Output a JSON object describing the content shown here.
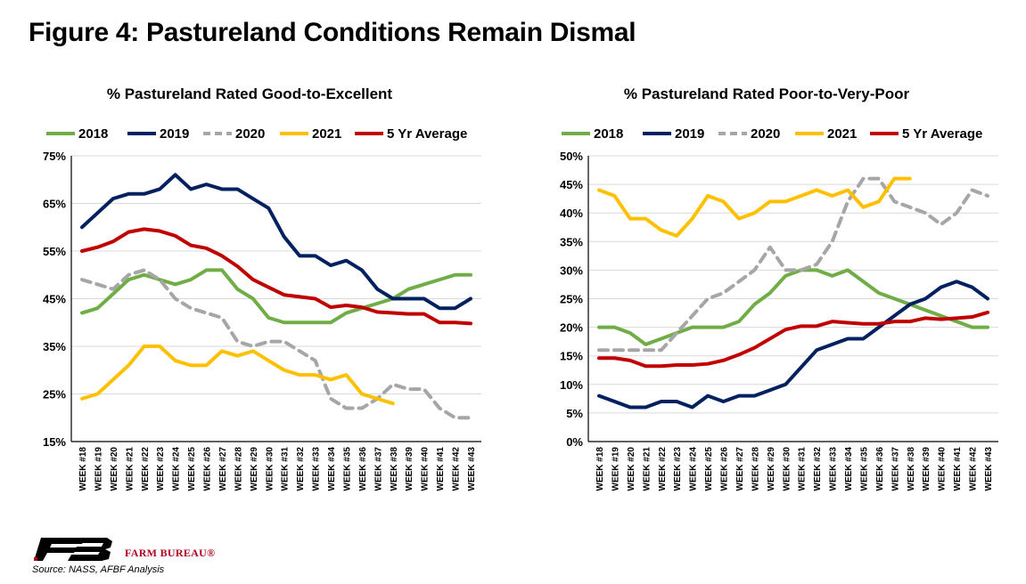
{
  "figure_title": "Figure 4: Pastureland Conditions Remain Dismal",
  "source": "Source: NASS, AFBF Analysis",
  "brand": "FARM BUREAU®",
  "colors": {
    "2018": "#70ad47",
    "2019": "#002060",
    "2020": "#a6a6a6",
    "2021": "#ffc000",
    "5 Yr Average": "#c00000"
  },
  "chart_data": [
    {
      "type": "line",
      "title": "% Pastureland Rated Good-to-Excellent",
      "categories": [
        "WEEK #18",
        "WEEK #19",
        "WEEK #20",
        "WEEK #21",
        "WEEK #22",
        "WEEK #23",
        "WEEK #24",
        "WEEK #25",
        "WEEK #26",
        "WEEK #27",
        "WEEK #28",
        "WEEK #29",
        "WEEK #30",
        "WEEK #31",
        "WEEK #32",
        "WEEK #33",
        "WEEK #34",
        "WEEK #35",
        "WEEK #36",
        "WEEK #37",
        "WEEK #38",
        "WEEK #39",
        "WEEK #40",
        "WEEK #41",
        "WEEK #42",
        "WEEK #43"
      ],
      "ylim": [
        15,
        75
      ],
      "yticks": [
        15,
        25,
        35,
        45,
        55,
        65,
        75
      ],
      "ytick_labels": [
        "15%",
        "25%",
        "35%",
        "45%",
        "55%",
        "65%",
        "75%"
      ],
      "legend_position": "top",
      "series": [
        {
          "name": "2018",
          "style": "solid",
          "values": [
            42,
            43,
            46,
            49,
            50,
            49,
            48,
            49,
            51,
            51,
            47,
            45,
            41,
            40,
            40,
            40,
            40,
            42,
            43,
            44,
            45,
            47,
            48,
            49,
            50,
            50
          ]
        },
        {
          "name": "2019",
          "style": "solid",
          "values": [
            60,
            63,
            66,
            67,
            67,
            68,
            71,
            68,
            69,
            68,
            68,
            66,
            64,
            58,
            54,
            54,
            52,
            53,
            51,
            47,
            45,
            45,
            45,
            43,
            43,
            45
          ]
        },
        {
          "name": "2020",
          "style": "dashed",
          "values": [
            49,
            48,
            47,
            50,
            51,
            49,
            45,
            43,
            42,
            41,
            36,
            35,
            36,
            36,
            34,
            32,
            24,
            22,
            22,
            24,
            27,
            26,
            26,
            22,
            20,
            20
          ]
        },
        {
          "name": "2021",
          "style": "solid",
          "values": [
            24,
            25,
            28,
            31,
            35,
            35,
            32,
            31,
            31,
            34,
            33,
            34,
            32,
            30,
            29,
            29,
            28,
            29,
            25,
            24,
            23,
            null,
            null,
            null,
            null,
            null
          ]
        },
        {
          "name": "5 Yr Average",
          "style": "solid",
          "values": [
            55,
            55.8,
            57,
            59,
            59.6,
            59.2,
            58.2,
            56.2,
            55.6,
            54,
            51.8,
            49,
            47.4,
            45.8,
            45.4,
            45,
            43.2,
            43.6,
            43.2,
            42.2,
            42,
            41.8,
            41.8,
            40,
            40,
            39.8
          ]
        }
      ]
    },
    {
      "type": "line",
      "title": "% Pastureland Rated Poor-to-Very-Poor",
      "categories": [
        "WEEK #18",
        "WEEK #19",
        "WEEK #20",
        "WEEK #21",
        "WEEK #22",
        "WEEK #23",
        "WEEK #24",
        "WEEK #25",
        "WEEK #26",
        "WEEK #27",
        "WEEK #28",
        "WEEK #29",
        "WEEK #30",
        "WEEK #31",
        "WEEK #32",
        "WEEK #33",
        "WEEK #34",
        "WEEK #35",
        "WEEK #36",
        "WEEK #37",
        "WEEK #38",
        "WEEK #39",
        "WEEK #40",
        "WEEK #41",
        "WEEK #42",
        "WEEK #43"
      ],
      "ylim": [
        0,
        50
      ],
      "yticks": [
        0,
        5,
        10,
        15,
        20,
        25,
        30,
        35,
        40,
        45,
        50
      ],
      "ytick_labels": [
        "0%",
        "5%",
        "10%",
        "15%",
        "20%",
        "25%",
        "30%",
        "35%",
        "40%",
        "45%",
        "50%"
      ],
      "legend_position": "top",
      "series": [
        {
          "name": "2018",
          "style": "solid",
          "values": [
            20,
            20,
            19,
            17,
            18,
            19,
            20,
            20,
            20,
            21,
            24,
            26,
            29,
            30,
            30,
            29,
            30,
            28,
            26,
            25,
            24,
            23,
            22,
            21,
            20,
            20
          ]
        },
        {
          "name": "2019",
          "style": "solid",
          "values": [
            8,
            7,
            6,
            6,
            7,
            7,
            6,
            8,
            7,
            8,
            8,
            9,
            10,
            13,
            16,
            17,
            18,
            18,
            20,
            22,
            24,
            25,
            27,
            28,
            27,
            25
          ]
        },
        {
          "name": "2020",
          "style": "dashed",
          "values": [
            16,
            16,
            16,
            16,
            16,
            19,
            22,
            25,
            26,
            28,
            30,
            34,
            30,
            30,
            31,
            35,
            42,
            46,
            46,
            42,
            41,
            40,
            38,
            40,
            44,
            43
          ]
        },
        {
          "name": "2021",
          "style": "solid",
          "values": [
            44,
            43,
            39,
            39,
            37,
            36,
            39,
            43,
            42,
            39,
            40,
            42,
            42,
            43,
            44,
            43,
            44,
            41,
            42,
            46,
            46,
            null,
            null,
            null,
            null,
            null
          ]
        },
        {
          "name": "5 Yr Average",
          "style": "solid",
          "values": [
            14.6,
            14.6,
            14.2,
            13.2,
            13.2,
            13.4,
            13.4,
            13.6,
            14.2,
            15.2,
            16.4,
            18,
            19.6,
            20.2,
            20.2,
            21,
            20.8,
            20.6,
            20.6,
            21,
            21,
            21.6,
            21.4,
            21.6,
            21.8,
            22.6
          ]
        }
      ]
    }
  ]
}
